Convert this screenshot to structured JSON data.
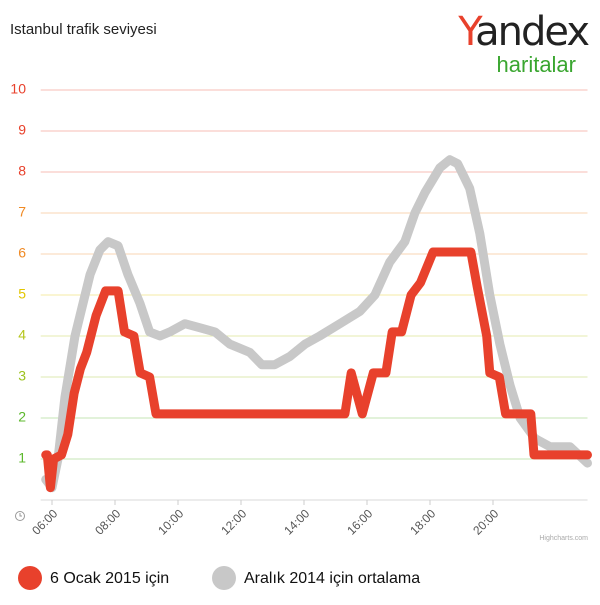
{
  "chart_data": {
    "type": "line",
    "title": "Istanbul trafik seviyesi",
    "logo": {
      "brand": "Yandex",
      "product": "haritalar"
    },
    "credits": "Highcharts.com",
    "xlim": [
      5.8,
      23.0
    ],
    "xticks": [
      {
        "value": 6,
        "label": "06:00"
      },
      {
        "value": 8,
        "label": "08:00"
      },
      {
        "value": 10,
        "label": "10:00"
      },
      {
        "value": 12,
        "label": "12:00"
      },
      {
        "value": 14,
        "label": "14:00"
      },
      {
        "value": 16,
        "label": "16:00"
      },
      {
        "value": 18,
        "label": "18:00"
      },
      {
        "value": 20,
        "label": "20:00"
      }
    ],
    "ylim": [
      0,
      10
    ],
    "yticks": [
      1,
      2,
      3,
      4,
      5,
      6,
      7,
      8,
      9,
      10
    ],
    "ytick_colors": [
      "#5cb82c",
      "#5cb82c",
      "#9cc21f",
      "#b5c51a",
      "#e2c600",
      "#f08a24",
      "#f08a24",
      "#e8412c",
      "#e8412c",
      "#e8412c"
    ],
    "grid": true,
    "legend": "bottom",
    "series": [
      {
        "name": "Aralık 2014 için ortalama",
        "color": "#c8c8c8",
        "x": [
          5.8,
          6.0,
          6.19,
          6.41,
          6.73,
          7.21,
          7.52,
          7.78,
          8.1,
          8.41,
          8.79,
          9.1,
          9.43,
          9.74,
          10.22,
          10.7,
          11.17,
          11.65,
          12.28,
          12.66,
          13.07,
          13.55,
          14.03,
          14.5,
          15.14,
          15.77,
          16.25,
          16.72,
          17.2,
          17.52,
          17.84,
          18.31,
          18.63,
          18.88,
          19.26,
          19.58,
          19.9,
          20.22,
          20.54,
          20.86,
          21.33,
          21.81,
          22.44,
          23.0
        ],
        "values": [
          0.5,
          0.3,
          1.0,
          2.5,
          4.0,
          5.5,
          6.1,
          6.3,
          6.2,
          5.5,
          4.8,
          4.1,
          4.0,
          4.1,
          4.3,
          4.2,
          4.1,
          3.8,
          3.6,
          3.3,
          3.3,
          3.5,
          3.8,
          4.0,
          4.3,
          4.6,
          5.0,
          5.8,
          6.3,
          7.0,
          7.5,
          8.1,
          8.3,
          8.2,
          7.6,
          6.5,
          5.0,
          3.8,
          2.8,
          2.0,
          1.5,
          1.3,
          1.3,
          0.9
        ]
      },
      {
        "name": "6 Ocak 2015 için",
        "color": "#e8412c",
        "x": [
          5.8,
          5.85,
          5.95,
          6.05,
          6.3,
          6.5,
          6.7,
          6.9,
          7.1,
          7.4,
          7.7,
          8.1,
          8.3,
          8.6,
          8.8,
          9.1,
          9.3,
          15.3,
          15.5,
          15.85,
          16.2,
          16.6,
          16.8,
          17.1,
          17.4,
          17.7,
          18.1,
          19.3,
          19.5,
          19.8,
          19.9,
          20.2,
          20.4,
          21.2,
          21.3,
          23.0
        ],
        "values": [
          1.1,
          1.1,
          0.3,
          1.0,
          1.1,
          1.6,
          2.6,
          3.2,
          3.6,
          4.5,
          5.1,
          5.1,
          4.1,
          4.0,
          3.1,
          3.0,
          2.1,
          2.1,
          3.1,
          2.1,
          3.1,
          3.1,
          4.1,
          4.1,
          5.0,
          5.3,
          6.05,
          6.05,
          5.2,
          4.0,
          3.1,
          3.0,
          2.1,
          2.1,
          1.1,
          1.1
        ]
      }
    ]
  }
}
